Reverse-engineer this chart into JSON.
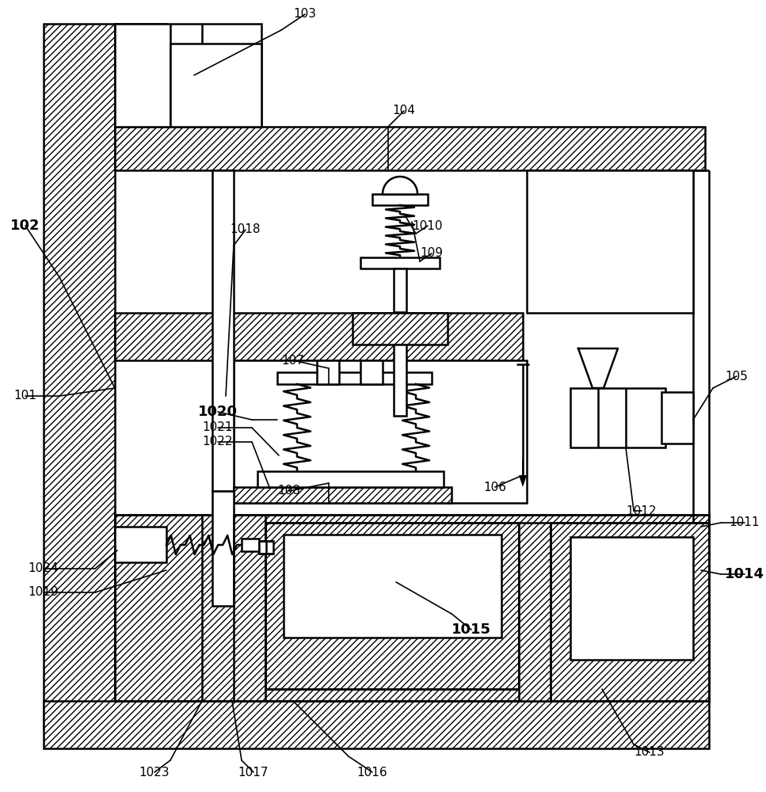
{
  "bg_color": "#ffffff",
  "figsize": [
    9.67,
    10.0
  ],
  "dpi": 100,
  "bold_labels": [
    "102",
    "1014",
    "1015",
    "1020"
  ]
}
